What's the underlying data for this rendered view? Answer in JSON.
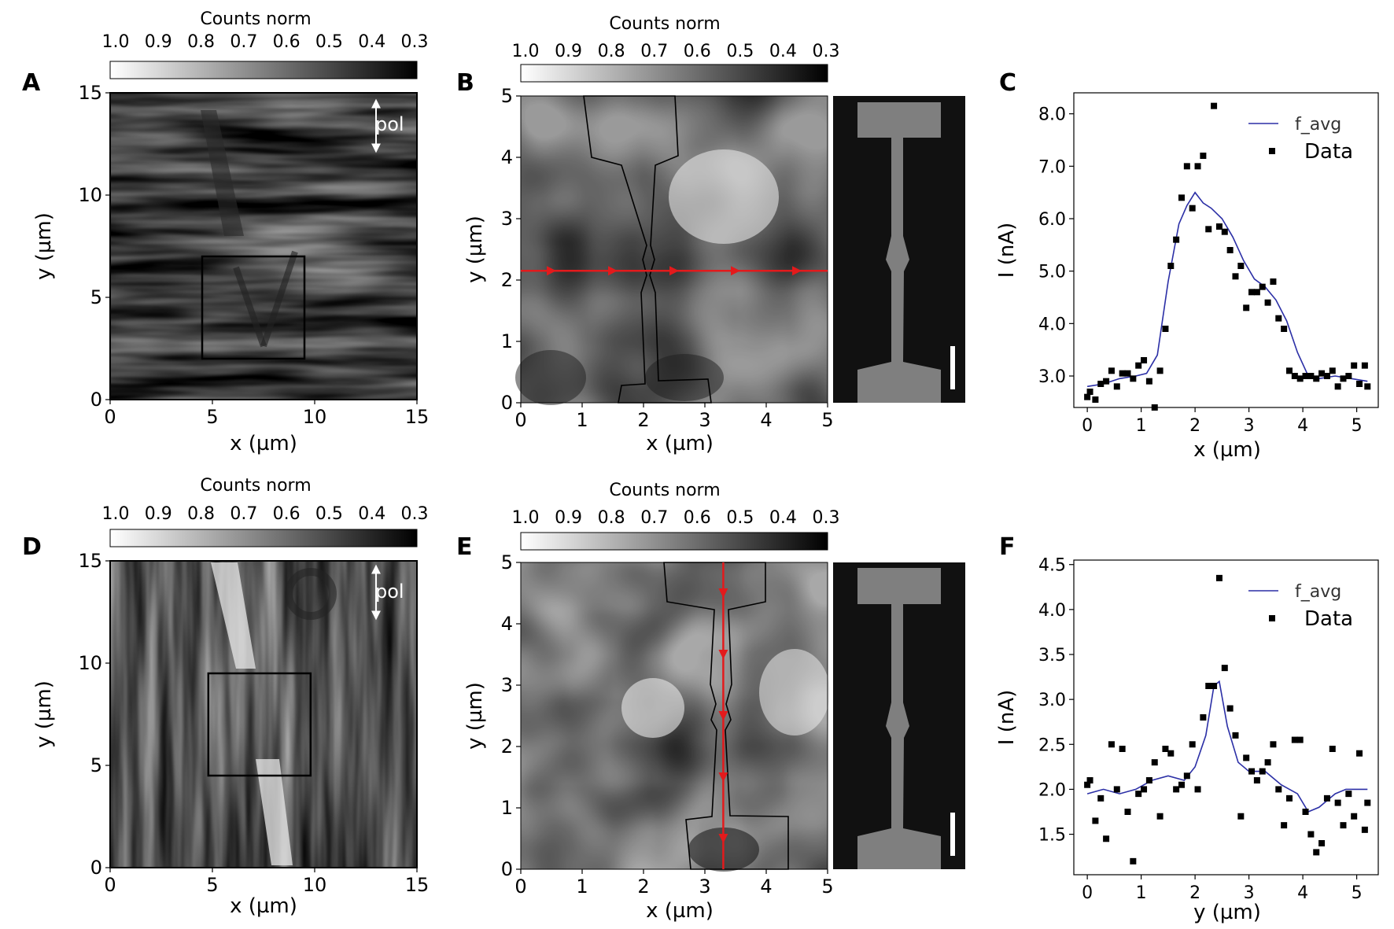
{
  "panels": {
    "A": {
      "letter": "A",
      "cbar_label": "Counts norm",
      "xlabel": "x (µm)",
      "ylabel": "y (µm)",
      "pol": "pol"
    },
    "B": {
      "letter": "B",
      "cbar_label": "Counts norm",
      "xlabel": "x (µm)",
      "ylabel": "y (µm)"
    },
    "C": {
      "letter": "C",
      "xlabel": "x (µm)",
      "ylabel": "I (nA)",
      "legend_line": "f_avg",
      "legend_points": "Data"
    },
    "D": {
      "letter": "D",
      "cbar_label": "Counts norm",
      "xlabel": "x (µm)",
      "ylabel": "y (µm)",
      "pol": "pol"
    },
    "E": {
      "letter": "E",
      "cbar_label": "Counts norm",
      "xlabel": "x (µm)",
      "ylabel": "y (µm)"
    },
    "F": {
      "letter": "F",
      "xlabel": "y (µm)",
      "ylabel": "I (nA)",
      "legend_line": "f_avg",
      "legend_points": "Data"
    }
  },
  "colorbar_ticks": [
    "1.0",
    "0.9",
    "0.8",
    "0.7",
    "0.6",
    "0.5",
    "0.4",
    "0.3"
  ],
  "chart_data": [
    {
      "panel": "A",
      "type": "heatmap",
      "xlim": [
        0,
        15
      ],
      "ylim": [
        0,
        15
      ],
      "xticks": [
        "0",
        "5",
        "10",
        "15"
      ],
      "yticks": [
        "0",
        "5",
        "10",
        "15"
      ],
      "colorbar_range": [
        1.0,
        0.25
      ],
      "roi_box": {
        "x": [
          4.5,
          9.5
        ],
        "y": [
          2,
          7
        ]
      }
    },
    {
      "panel": "B",
      "type": "heatmap",
      "xlim": [
        0,
        5
      ],
      "ylim": [
        0,
        5
      ],
      "xticks": [
        "0",
        "1",
        "2",
        "3",
        "4",
        "5"
      ],
      "yticks": [
        "0",
        "1",
        "2",
        "3",
        "4",
        "5"
      ],
      "colorbar_range": [
        1.0,
        0.25
      ],
      "scan_line": {
        "orientation": "horizontal",
        "y": 2.15
      }
    },
    {
      "panel": "C",
      "type": "scatter",
      "xlim": [
        -0.25,
        5.4
      ],
      "ylim": [
        2.4,
        8.4
      ],
      "xticks": [
        "0",
        "1",
        "2",
        "3",
        "4",
        "5"
      ],
      "yticks": [
        "3.0",
        "4.0",
        "5.0",
        "6.0",
        "7.0",
        "8.0"
      ],
      "series": [
        {
          "name": "f_avg",
          "kind": "line",
          "x": [
            0,
            0.3,
            0.6,
            0.9,
            1.1,
            1.3,
            1.5,
            1.7,
            1.85,
            2.0,
            2.15,
            2.3,
            2.5,
            2.7,
            2.9,
            3.1,
            3.3,
            3.5,
            3.7,
            3.9,
            4.1,
            4.3,
            4.6,
            4.9,
            5.2
          ],
          "y": [
            2.8,
            2.85,
            2.95,
            3.0,
            3.05,
            3.4,
            4.8,
            5.9,
            6.25,
            6.5,
            6.3,
            6.2,
            6.0,
            5.65,
            5.2,
            4.85,
            4.7,
            4.45,
            4.05,
            3.45,
            3.0,
            2.95,
            3.0,
            2.95,
            2.9
          ]
        },
        {
          "name": "Data",
          "kind": "points",
          "x": [
            0.0,
            0.05,
            0.15,
            0.25,
            0.35,
            0.45,
            0.55,
            0.65,
            0.75,
            0.85,
            0.95,
            1.05,
            1.15,
            1.25,
            1.35,
            1.45,
            1.55,
            1.65,
            1.75,
            1.85,
            1.95,
            2.05,
            2.15,
            2.25,
            2.35,
            2.45,
            2.55,
            2.65,
            2.75,
            2.85,
            2.95,
            3.05,
            3.15,
            3.25,
            3.35,
            3.45,
            3.55,
            3.65,
            3.75,
            3.85,
            3.95,
            4.05,
            4.15,
            4.25,
            4.35,
            4.45,
            4.55,
            4.65,
            4.75,
            4.85,
            4.95,
            5.05,
            5.15,
            5.2
          ],
          "y": [
            2.6,
            2.7,
            2.55,
            2.85,
            2.9,
            3.1,
            2.8,
            3.05,
            3.05,
            2.95,
            3.2,
            3.3,
            2.9,
            2.4,
            3.1,
            3.9,
            5.1,
            5.6,
            6.4,
            7.0,
            6.2,
            7.0,
            7.2,
            5.8,
            8.15,
            5.85,
            5.75,
            5.4,
            4.9,
            5.1,
            4.3,
            4.6,
            4.6,
            4.7,
            4.4,
            4.8,
            4.1,
            3.9,
            3.1,
            3.0,
            2.95,
            3.0,
            3.0,
            2.95,
            3.05,
            3.0,
            3.1,
            2.8,
            2.95,
            3.0,
            3.2,
            2.85,
            3.2,
            2.8
          ]
        }
      ],
      "legend_position": "top-right"
    },
    {
      "panel": "D",
      "type": "heatmap",
      "xlim": [
        0,
        15
      ],
      "ylim": [
        0,
        15
      ],
      "xticks": [
        "0",
        "5",
        "10",
        "15"
      ],
      "yticks": [
        "0",
        "5",
        "10",
        "15"
      ],
      "colorbar_range": [
        1.0,
        0.25
      ],
      "roi_box": {
        "x": [
          4.8,
          9.8
        ],
        "y": [
          4.5,
          9.5
        ]
      }
    },
    {
      "panel": "E",
      "type": "heatmap",
      "xlim": [
        0,
        5
      ],
      "ylim": [
        0,
        5
      ],
      "xticks": [
        "0",
        "1",
        "2",
        "3",
        "4",
        "5"
      ],
      "yticks": [
        "0",
        "1",
        "2",
        "3",
        "4",
        "5"
      ],
      "colorbar_range": [
        1.0,
        0.25
      ],
      "scan_line": {
        "orientation": "vertical",
        "x": 3.3
      }
    },
    {
      "panel": "F",
      "type": "scatter",
      "xlim": [
        -0.25,
        5.4
      ],
      "ylim": [
        1.05,
        4.55
      ],
      "xticks": [
        "0",
        "1",
        "2",
        "3",
        "4",
        "5"
      ],
      "yticks": [
        "1.5",
        "2.0",
        "2.5",
        "3.0",
        "3.5",
        "4.0",
        "4.5"
      ],
      "series": [
        {
          "name": "f_avg",
          "kind": "line",
          "x": [
            0,
            0.3,
            0.6,
            0.9,
            1.2,
            1.5,
            1.8,
            2.0,
            2.2,
            2.35,
            2.45,
            2.6,
            2.8,
            3.0,
            3.3,
            3.6,
            3.9,
            4.1,
            4.3,
            4.6,
            4.8,
            5.0,
            5.2
          ],
          "y": [
            1.95,
            2.0,
            1.95,
            2.0,
            2.1,
            2.15,
            2.1,
            2.25,
            2.6,
            3.15,
            3.2,
            2.7,
            2.3,
            2.2,
            2.2,
            2.05,
            1.95,
            1.75,
            1.8,
            1.95,
            2.0,
            2.0,
            2.0
          ]
        },
        {
          "name": "Data",
          "kind": "points",
          "x": [
            0.0,
            0.05,
            0.15,
            0.25,
            0.35,
            0.45,
            0.55,
            0.65,
            0.75,
            0.85,
            0.95,
            1.05,
            1.15,
            1.25,
            1.35,
            1.45,
            1.55,
            1.65,
            1.75,
            1.85,
            1.95,
            2.05,
            2.15,
            2.25,
            2.35,
            2.45,
            2.55,
            2.65,
            2.75,
            2.85,
            2.95,
            3.05,
            3.15,
            3.25,
            3.35,
            3.45,
            3.55,
            3.65,
            3.75,
            3.85,
            3.95,
            4.05,
            4.15,
            4.25,
            4.35,
            4.45,
            4.55,
            4.65,
            4.75,
            4.85,
            4.95,
            5.05,
            5.15,
            5.2
          ],
          "y": [
            2.05,
            2.1,
            1.65,
            1.9,
            1.45,
            2.5,
            2.0,
            2.45,
            1.75,
            1.2,
            1.95,
            2.0,
            2.1,
            2.3,
            1.7,
            2.45,
            2.4,
            2.0,
            2.05,
            2.15,
            2.5,
            2.0,
            2.8,
            3.15,
            3.15,
            4.35,
            3.35,
            2.9,
            2.6,
            1.7,
            2.35,
            2.2,
            2.1,
            2.2,
            2.3,
            2.5,
            2.0,
            1.6,
            1.9,
            2.55,
            2.55,
            1.75,
            1.5,
            1.3,
            1.4,
            1.9,
            2.45,
            1.85,
            1.6,
            1.95,
            1.7,
            2.4,
            1.55,
            1.85
          ]
        }
      ],
      "legend_position": "top-right"
    }
  ]
}
